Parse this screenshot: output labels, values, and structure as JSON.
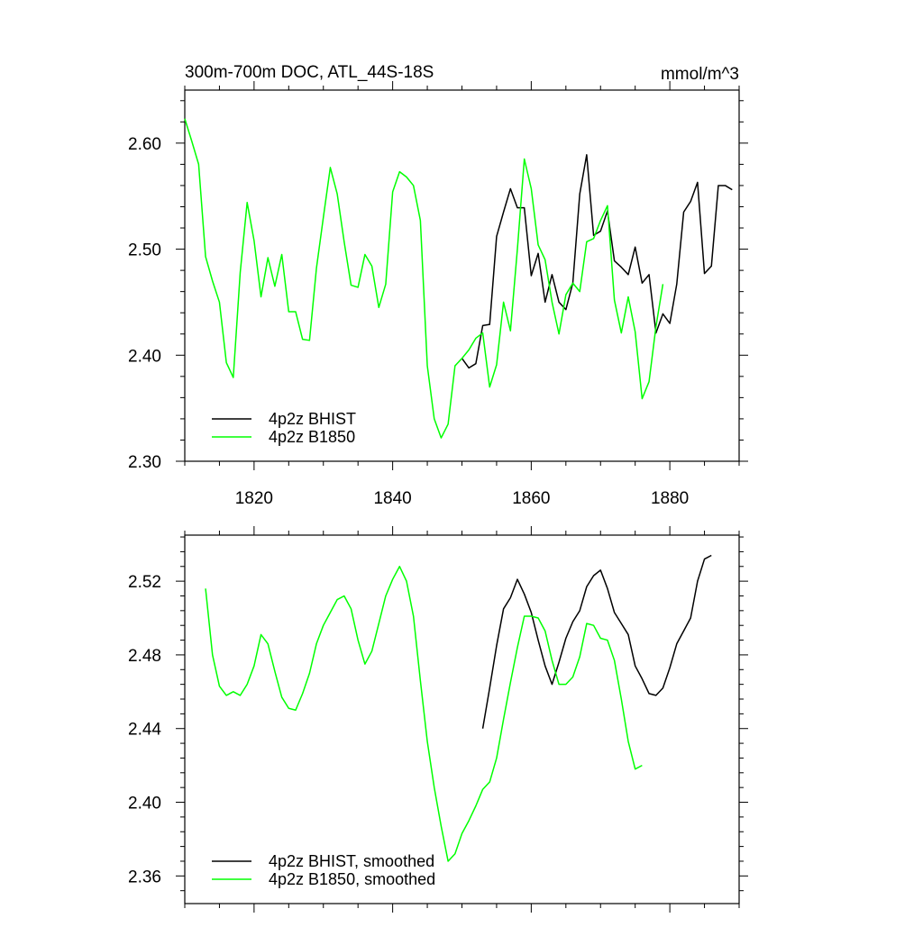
{
  "chart_data": [
    {
      "type": "line",
      "title": "300m-700m DOC, ATL_44S-18S",
      "units": "mmol/m^3",
      "xlim": [
        1810,
        1890
      ],
      "ylim": [
        2.3,
        2.65
      ],
      "x_ticks": [
        1820,
        1840,
        1860,
        1880
      ],
      "x_tick_labels": [
        "1820",
        "1840",
        "1860",
        "1880"
      ],
      "y_ticks": [
        2.3,
        2.4,
        2.5,
        2.6
      ],
      "y_tick_labels": [
        "2.30",
        "2.40",
        "2.50",
        "2.60"
      ],
      "legend": "bottom-left",
      "series": [
        {
          "name": "4p2z BHIST",
          "color": "#000000",
          "x": [
            1850,
            1851,
            1852,
            1853,
            1854,
            1855,
            1856,
            1857,
            1858,
            1859,
            1860,
            1861,
            1862,
            1863,
            1864,
            1865,
            1866,
            1867,
            1868,
            1869,
            1870,
            1871,
            1872,
            1873,
            1874,
            1875,
            1876,
            1877,
            1878,
            1879,
            1880,
            1881,
            1882,
            1883,
            1884,
            1885,
            1886,
            1887,
            1888,
            1889
          ],
          "y": [
            2.397,
            2.388,
            2.392,
            2.428,
            2.429,
            2.512,
            2.535,
            2.557,
            2.539,
            2.539,
            2.475,
            2.496,
            2.45,
            2.476,
            2.45,
            2.443,
            2.468,
            2.552,
            2.589,
            2.513,
            2.517,
            2.536,
            2.489,
            2.483,
            2.476,
            2.502,
            2.468,
            2.476,
            2.421,
            2.439,
            2.43,
            2.467,
            2.535,
            2.545,
            2.563,
            2.477,
            2.484,
            2.56,
            2.56,
            2.556
          ]
        },
        {
          "name": "4p2z B1850",
          "color": "#00ff00",
          "x": [
            1810,
            1811,
            1812,
            1813,
            1814,
            1815,
            1816,
            1817,
            1818,
            1819,
            1820,
            1821,
            1822,
            1823,
            1824,
            1825,
            1826,
            1827,
            1828,
            1829,
            1830,
            1831,
            1832,
            1833,
            1834,
            1835,
            1836,
            1837,
            1838,
            1839,
            1840,
            1841,
            1842,
            1843,
            1844,
            1845,
            1846,
            1847,
            1848,
            1849,
            1850,
            1851,
            1852,
            1853,
            1854,
            1855,
            1856,
            1857,
            1858,
            1859,
            1860,
            1861,
            1862,
            1863,
            1864,
            1865,
            1866,
            1867,
            1868,
            1869,
            1870,
            1871,
            1872,
            1873,
            1874,
            1875,
            1876,
            1877,
            1878,
            1879
          ],
          "y": [
            2.623,
            2.602,
            2.58,
            2.493,
            2.47,
            2.45,
            2.393,
            2.379,
            2.478,
            2.544,
            2.508,
            2.455,
            2.492,
            2.465,
            2.495,
            2.441,
            2.441,
            2.415,
            2.414,
            2.482,
            2.53,
            2.577,
            2.552,
            2.507,
            2.466,
            2.464,
            2.495,
            2.484,
            2.445,
            2.467,
            2.554,
            2.573,
            2.568,
            2.56,
            2.527,
            2.39,
            2.34,
            2.322,
            2.335,
            2.39,
            2.397,
            2.405,
            2.416,
            2.421,
            2.37,
            2.391,
            2.45,
            2.423,
            2.5,
            2.585,
            2.557,
            2.504,
            2.49,
            2.45,
            2.42,
            2.457,
            2.468,
            2.46,
            2.507,
            2.51,
            2.527,
            2.541,
            2.452,
            2.421,
            2.455,
            2.422,
            2.359,
            2.375,
            2.427,
            2.467
          ]
        }
      ]
    },
    {
      "type": "line",
      "xlim": [
        1810,
        1890
      ],
      "ylim": [
        2.345,
        2.545
      ],
      "x_ticks": [
        1820,
        1840,
        1860,
        1880
      ],
      "y_ticks": [
        2.36,
        2.4,
        2.44,
        2.48,
        2.52
      ],
      "y_tick_labels": [
        "2.36",
        "2.40",
        "2.44",
        "2.48",
        "2.52"
      ],
      "legend": "bottom-left",
      "series": [
        {
          "name": "4p2z BHIST, smoothed",
          "color": "#000000",
          "x": [
            1853,
            1854,
            1855,
            1856,
            1857,
            1858,
            1859,
            1860,
            1861,
            1862,
            1863,
            1864,
            1865,
            1866,
            1867,
            1868,
            1869,
            1870,
            1871,
            1872,
            1873,
            1874,
            1875,
            1876,
            1877,
            1878,
            1879,
            1880,
            1881,
            1882,
            1883,
            1884,
            1885,
            1886
          ],
          "y": [
            2.44,
            2.462,
            2.485,
            2.505,
            2.511,
            2.521,
            2.513,
            2.503,
            2.488,
            2.474,
            2.464,
            2.476,
            2.489,
            2.498,
            2.504,
            2.517,
            2.523,
            2.526,
            2.516,
            2.503,
            2.497,
            2.491,
            2.474,
            2.467,
            2.459,
            2.458,
            2.462,
            2.473,
            2.486,
            2.493,
            2.5,
            2.52,
            2.532,
            2.534
          ]
        },
        {
          "name": "4p2z B1850, smoothed",
          "color": "#00ff00",
          "x": [
            1813,
            1814,
            1815,
            1816,
            1817,
            1818,
            1819,
            1820,
            1821,
            1822,
            1823,
            1824,
            1825,
            1826,
            1827,
            1828,
            1829,
            1830,
            1831,
            1832,
            1833,
            1834,
            1835,
            1836,
            1837,
            1838,
            1839,
            1840,
            1841,
            1842,
            1843,
            1844,
            1845,
            1846,
            1847,
            1848,
            1849,
            1850,
            1851,
            1852,
            1853,
            1854,
            1855,
            1856,
            1857,
            1858,
            1859,
            1860,
            1861,
            1862,
            1863,
            1864,
            1865,
            1866,
            1867,
            1868,
            1869,
            1870,
            1871,
            1872,
            1873,
            1874,
            1875,
            1876
          ],
          "y": [
            2.516,
            2.48,
            2.463,
            2.458,
            2.46,
            2.458,
            2.464,
            2.474,
            2.491,
            2.486,
            2.471,
            2.457,
            2.451,
            2.45,
            2.459,
            2.47,
            2.486,
            2.496,
            2.503,
            2.51,
            2.512,
            2.505,
            2.488,
            2.475,
            2.482,
            2.497,
            2.512,
            2.521,
            2.528,
            2.52,
            2.501,
            2.466,
            2.433,
            2.408,
            2.387,
            2.368,
            2.372,
            2.383,
            2.39,
            2.398,
            2.407,
            2.411,
            2.424,
            2.445,
            2.465,
            2.484,
            2.501,
            2.501,
            2.5,
            2.493,
            2.477,
            2.464,
            2.464,
            2.468,
            2.479,
            2.497,
            2.496,
            2.489,
            2.488,
            2.477,
            2.456,
            2.433,
            2.418,
            2.42
          ]
        }
      ]
    }
  ]
}
